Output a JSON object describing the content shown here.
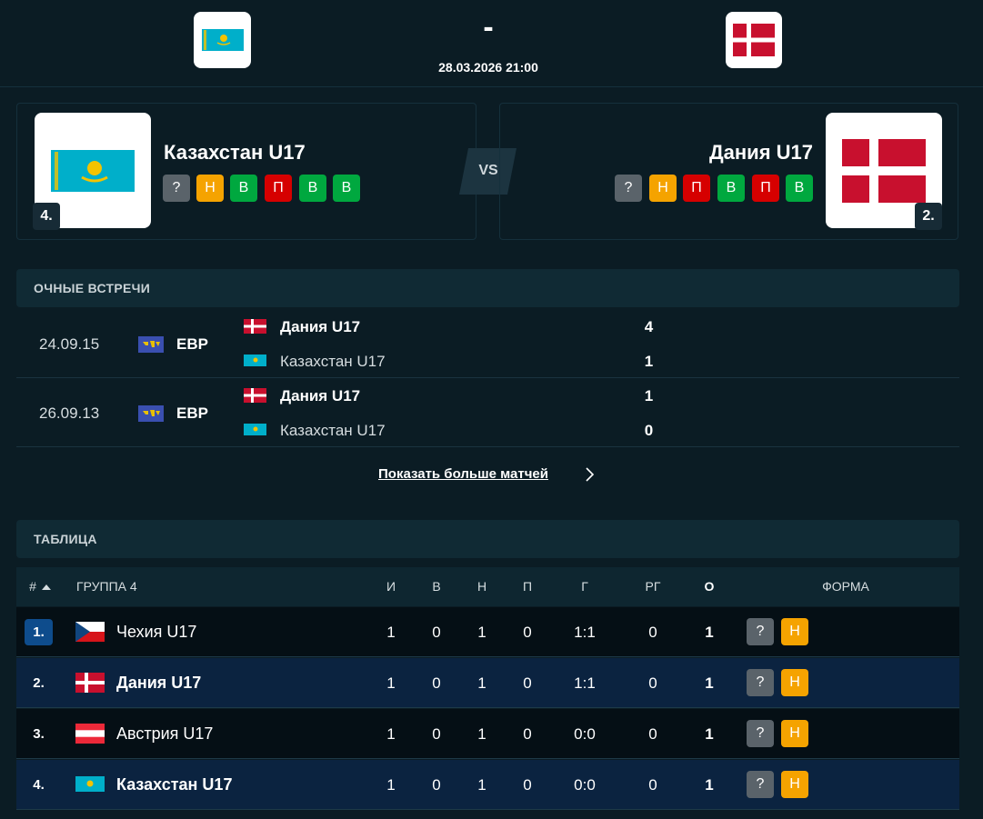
{
  "header": {
    "score": "-",
    "datetime": "28.03.2026 21:00"
  },
  "home": {
    "name": "Казахстан U17",
    "rank": "4.",
    "form": [
      "?",
      "Н",
      "В",
      "П",
      "В",
      "В"
    ]
  },
  "vs": "VS",
  "away": {
    "name": "Дания U17",
    "rank": "2.",
    "form": [
      "?",
      "Н",
      "П",
      "В",
      "П",
      "В"
    ]
  },
  "h2h": {
    "title": "ОЧНЫЕ ВСТРЕЧИ",
    "matches": [
      {
        "date": "24.09.15",
        "competition": "ЕВР",
        "home": "Дания U17",
        "home_score": 4,
        "away": "Казахстан U17",
        "away_score": 1
      },
      {
        "date": "26.09.13",
        "competition": "ЕВР",
        "home": "Дания U17",
        "home_score": 1,
        "away": "Казахстан U17",
        "away_score": 0
      }
    ],
    "more": "Показать больше матчей"
  },
  "standings": {
    "title": "ТАБЛИЦА",
    "columns": [
      "#",
      "ГРУППА 4",
      "И",
      "В",
      "Н",
      "П",
      "Г",
      "РГ",
      "О",
      "ФОРМА"
    ],
    "rows": [
      {
        "rank": "1.",
        "team": "Чехия U17",
        "played": 1,
        "won": 0,
        "drawn": 1,
        "lost": 0,
        "goals": "1:1",
        "gd": 0,
        "points": 1,
        "form": [
          "?",
          "Н"
        ]
      },
      {
        "rank": "2.",
        "team": "Дания U17",
        "played": 1,
        "won": 0,
        "drawn": 1,
        "lost": 0,
        "goals": "1:1",
        "gd": 0,
        "points": 1,
        "form": [
          "?",
          "Н"
        ]
      },
      {
        "rank": "3.",
        "team": "Австрия U17",
        "played": 1,
        "won": 0,
        "drawn": 1,
        "lost": 0,
        "goals": "0:0",
        "gd": 0,
        "points": 1,
        "form": [
          "?",
          "Н"
        ]
      },
      {
        "rank": "4.",
        "team": "Казахстан U17",
        "played": 1,
        "won": 0,
        "drawn": 1,
        "lost": 0,
        "goals": "0:0",
        "gd": 0,
        "points": 1,
        "form": [
          "?",
          "Н"
        ]
      }
    ]
  }
}
